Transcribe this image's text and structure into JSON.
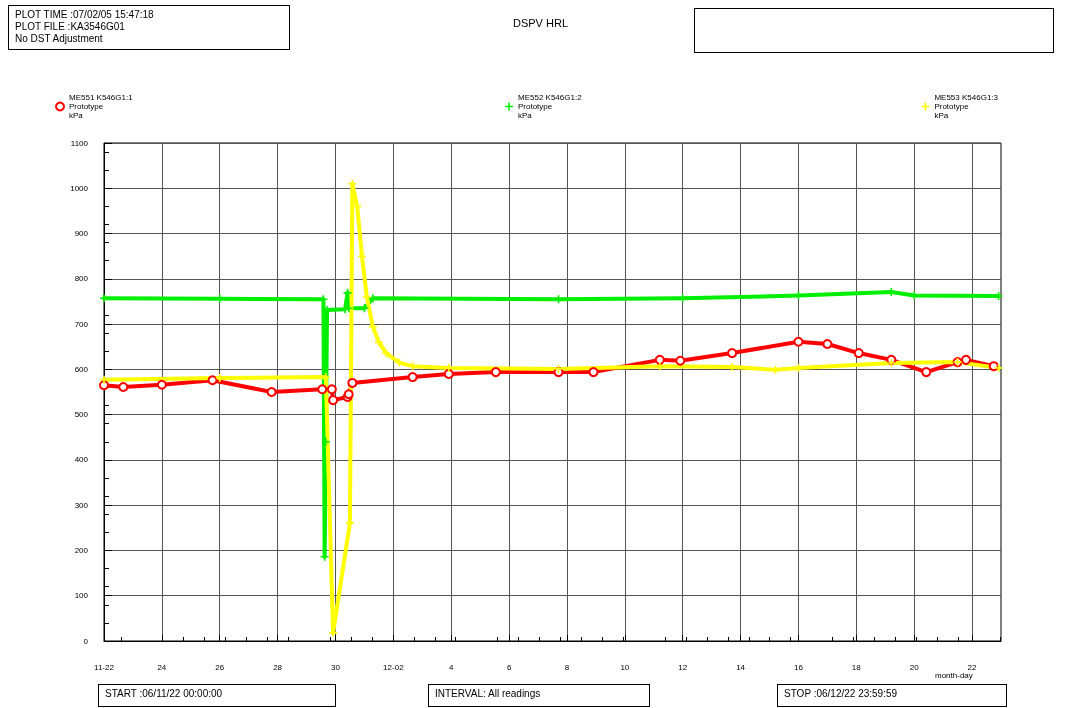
{
  "chart_data": {
    "type": "line",
    "title": "DSPV HRL",
    "xlabel": "month-day",
    "annotations": [
      "PLOT TIME :07/02/05 15:47:18",
      "PLOT FILE :KA3546G01",
      "No DST Adjustment",
      "START :06/11/22 00:00:00",
      "INTERVAL: All readings",
      "STOP :06/12/22 23:59:59"
    ],
    "xlim": [
      "--11-22",
      "--12-23"
    ],
    "xticks": [
      {
        "value": "--11-22",
        "label": "11-22"
      },
      {
        "value": "--11-24",
        "label": "24"
      },
      {
        "value": "--11-26",
        "label": "26"
      },
      {
        "value": "--11-28",
        "label": "28"
      },
      {
        "value": "--11-30",
        "label": "30"
      },
      {
        "value": "--12-02",
        "label": "12-02"
      },
      {
        "value": "--12-04",
        "label": "4"
      },
      {
        "value": "--12-06",
        "label": "6"
      },
      {
        "value": "--12-08",
        "label": "8"
      },
      {
        "value": "--12-10",
        "label": "10"
      },
      {
        "value": "--12-12",
        "label": "12"
      },
      {
        "value": "--12-14",
        "label": "14"
      },
      {
        "value": "--12-16",
        "label": "16"
      },
      {
        "value": "--12-18",
        "label": "18"
      },
      {
        "value": "--12-20",
        "label": "20"
      },
      {
        "value": "--12-22",
        "label": "22"
      }
    ],
    "ylim": [
      0,
      1100
    ],
    "yticks": [
      0,
      100,
      200,
      300,
      400,
      500,
      600,
      700,
      800,
      900,
      1000,
      1100
    ],
    "grid": true,
    "legend": "top",
    "line_style": "solid",
    "series": [
      {
        "name": "ME551 K546G1:1\nPrototype\nkPa",
        "color": "#ff0000",
        "marker": "circle",
        "x": [
          "--11-22T00:00",
          "--11-22T16:00",
          "--11-24T00:00",
          "--11-25T18:00",
          "--11-27T19:00",
          "--11-29T13:00",
          "--11-29T21:00",
          "--11-29T22:00",
          "--11-30T10:00",
          "--11-30T11:00",
          "--11-30T14:00",
          "--12-02T16:00",
          "--12-03T22:00",
          "--12-05T13:00",
          "--12-07T17:00",
          "--12-08T22:00",
          "--12-11T05:00",
          "--12-11T22:00",
          "--12-13T17:00",
          "--12-16T00:00",
          "--12-17T00:00",
          "--12-18T02:00",
          "--12-19T05:00",
          "--12-20T10:00",
          "--12-21T12:00",
          "--12-21T19:00",
          "--12-22T18:00"
        ],
        "values": [
          565,
          561,
          566,
          576,
          550,
          556,
          556,
          532,
          539,
          545,
          570,
          583,
          590,
          594,
          594,
          594,
          621,
          619,
          636,
          661,
          656,
          636,
          621,
          594,
          616,
          621,
          607
        ]
      },
      {
        "name": "ME552 K546G1:2\nPrototype\nkPa",
        "color": "#00ee00",
        "marker": "cross",
        "x": [
          "--11-22T00:00",
          "--11-26T00:00",
          "--11-29T14:00",
          "--11-29T15:00",
          "--11-29T16:00",
          "--11-29T17:00",
          "--11-30T08:00",
          "--11-30T10:00",
          "--11-30T11:00",
          "--12-01T00:00",
          "--12-01T07:00",
          "--12-07T17:00",
          "--12-12T00:00",
          "--12-16T00:00",
          "--12-19T05:00",
          "--12-20T00:00",
          "--12-22T22:00"
        ],
        "values": [
          757,
          756,
          755,
          186,
          440,
          731,
          733,
          769,
          735,
          735,
          757,
          755,
          757,
          763,
          771,
          763,
          762
        ]
      },
      {
        "name": "ME553 K546G1:3\nPrototype\nkPa",
        "color": "#ffff00",
        "marker": "cross",
        "x": [
          "--11-22T00:00",
          "--11-26T00:00",
          "--11-29T16:00",
          "--11-29T22:00",
          "--11-30T12:00",
          "--11-30T14:00",
          "--11-30T18:00",
          "--11-30T22:00",
          "--12-01T02:00",
          "--12-01T07:00",
          "--12-01T12:00",
          "--12-01T18:00",
          "--12-02T05:00",
          "--12-02T16:00",
          "--12-03T22:00",
          "--12-07T17:00",
          "--12-11T05:00",
          "--12-13T17:00",
          "--12-15T05:00",
          "--12-16T00:00",
          "--12-19T05:00",
          "--12-21T12:00",
          "--12-22T22:00"
        ],
        "values": [
          577,
          581,
          583,
          18,
          261,
          1010,
          960,
          850,
          760,
          694,
          660,
          636,
          615,
          607,
          603,
          601,
          607,
          605,
          599,
          603,
          614,
          616,
          603
        ]
      }
    ]
  }
}
